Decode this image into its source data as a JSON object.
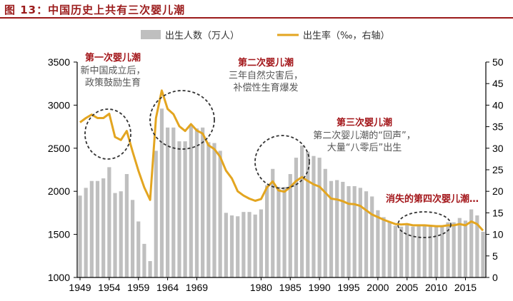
{
  "figure_title": "图 13：中国历史上共有三次婴儿潮",
  "colors": {
    "bar": "#bfbfbf",
    "line": "#e3a520",
    "annotation_title": "#a3161a",
    "annotation_text": "#555555",
    "circle": "#333333"
  },
  "chart_data": {
    "type": "bar+line",
    "legend": {
      "placement": "top",
      "bar_label": "出生人数（万人）",
      "line_label": "出生率（‰，右轴）"
    },
    "x_ticks": [
      "1949",
      "1954",
      "1959",
      "1964",
      "1969",
      "1980",
      "1985",
      "1990",
      "1995",
      "2000",
      "2005",
      "2010",
      "2015"
    ],
    "y_left": {
      "range": [
        1000,
        3500
      ],
      "ticks": [
        "1000",
        "1500",
        "2000",
        "2500",
        "3000",
        "3500"
      ]
    },
    "y_right": {
      "range": [
        0,
        50
      ],
      "ticks": [
        "0",
        "5",
        "10",
        "15",
        "20",
        "25",
        "30",
        "35",
        "40",
        "45",
        "50"
      ]
    },
    "grid": false,
    "years": [
      1949,
      1950,
      1951,
      1952,
      1953,
      1954,
      1955,
      1956,
      1957,
      1958,
      1959,
      1960,
      1961,
      1962,
      1963,
      1964,
      1965,
      1966,
      1967,
      1968,
      1969,
      1970,
      1971,
      1972,
      1973,
      1974,
      1975,
      1976,
      1977,
      1978,
      1979,
      1980,
      1981,
      1982,
      1983,
      1984,
      1985,
      1986,
      1987,
      1988,
      1989,
      1990,
      1991,
      1992,
      1993,
      1994,
      1995,
      1996,
      1997,
      1998,
      1999,
      2000,
      2001,
      2002,
      2003,
      2004,
      2005,
      2006,
      2007,
      2008,
      2009,
      2010,
      2011,
      2012,
      2013,
      2014,
      2015,
      2016,
      2017,
      2018
    ],
    "series": [
      {
        "name": "出生人数（万人）",
        "kind": "bar",
        "axis": "left",
        "values": [
          1950,
          2040,
          2120,
          2120,
          2150,
          2280,
          1980,
          2000,
          2200,
          1900,
          1650,
          1390,
          1190,
          2470,
          2960,
          2740,
          2740,
          2580,
          2580,
          2760,
          2730,
          2740,
          2570,
          2560,
          2470,
          1750,
          1720,
          1710,
          1760,
          1760,
          1730,
          1790,
          2070,
          2260,
          2050,
          2050,
          2200,
          2390,
          2530,
          2460,
          2410,
          2390,
          2260,
          2120,
          2130,
          2110,
          2060,
          2060,
          2040,
          2000,
          1940,
          1780,
          1700,
          1650,
          1600,
          1590,
          1620,
          1590,
          1600,
          1610,
          1600,
          1590,
          1600,
          1640,
          1640,
          1690,
          1660,
          1790,
          1720,
          1530
        ]
      },
      {
        "name": "出生率（‰，右轴）",
        "kind": "line",
        "axis": "right",
        "values": [
          36,
          37,
          37.8,
          37,
          37,
          38,
          32.6,
          31.9,
          34,
          29.2,
          24.8,
          20.9,
          18,
          37,
          43.4,
          39.1,
          37.9,
          35.1,
          34,
          35.6,
          34.1,
          33.4,
          30.7,
          29.8,
          28,
          24.8,
          23,
          20,
          19,
          18.3,
          17.8,
          18.2,
          20.9,
          22.3,
          20.2,
          19.9,
          21,
          22.4,
          23.3,
          22.4,
          21.6,
          21.1,
          19.7,
          18.3,
          18.1,
          17.7,
          17.1,
          17,
          16.6,
          15.6,
          14.6,
          14,
          13.4,
          12.9,
          12.4,
          12.3,
          12.4,
          12.1,
          12.1,
          12.1,
          12,
          11.9,
          11.9,
          12.1,
          12.1,
          12.4,
          12.1,
          13,
          12.4,
          10.9
        ]
      }
    ],
    "annotations": [
      {
        "title": "第一次婴儿潮",
        "subtitle_lines": [
          "新中国成立后，",
          "政策鼓励生育"
        ]
      },
      {
        "title": "第二次婴儿潮",
        "subtitle_lines": [
          "三年自然灾害后，",
          "补偿性生育爆发"
        ]
      },
      {
        "title": "第三次婴儿潮",
        "subtitle_lines": [
          "第二次婴儿潮的“回声”，",
          "大量“八零后”出生"
        ]
      },
      {
        "title": "消失的第四次婴儿潮…",
        "subtitle_lines": []
      }
    ]
  }
}
